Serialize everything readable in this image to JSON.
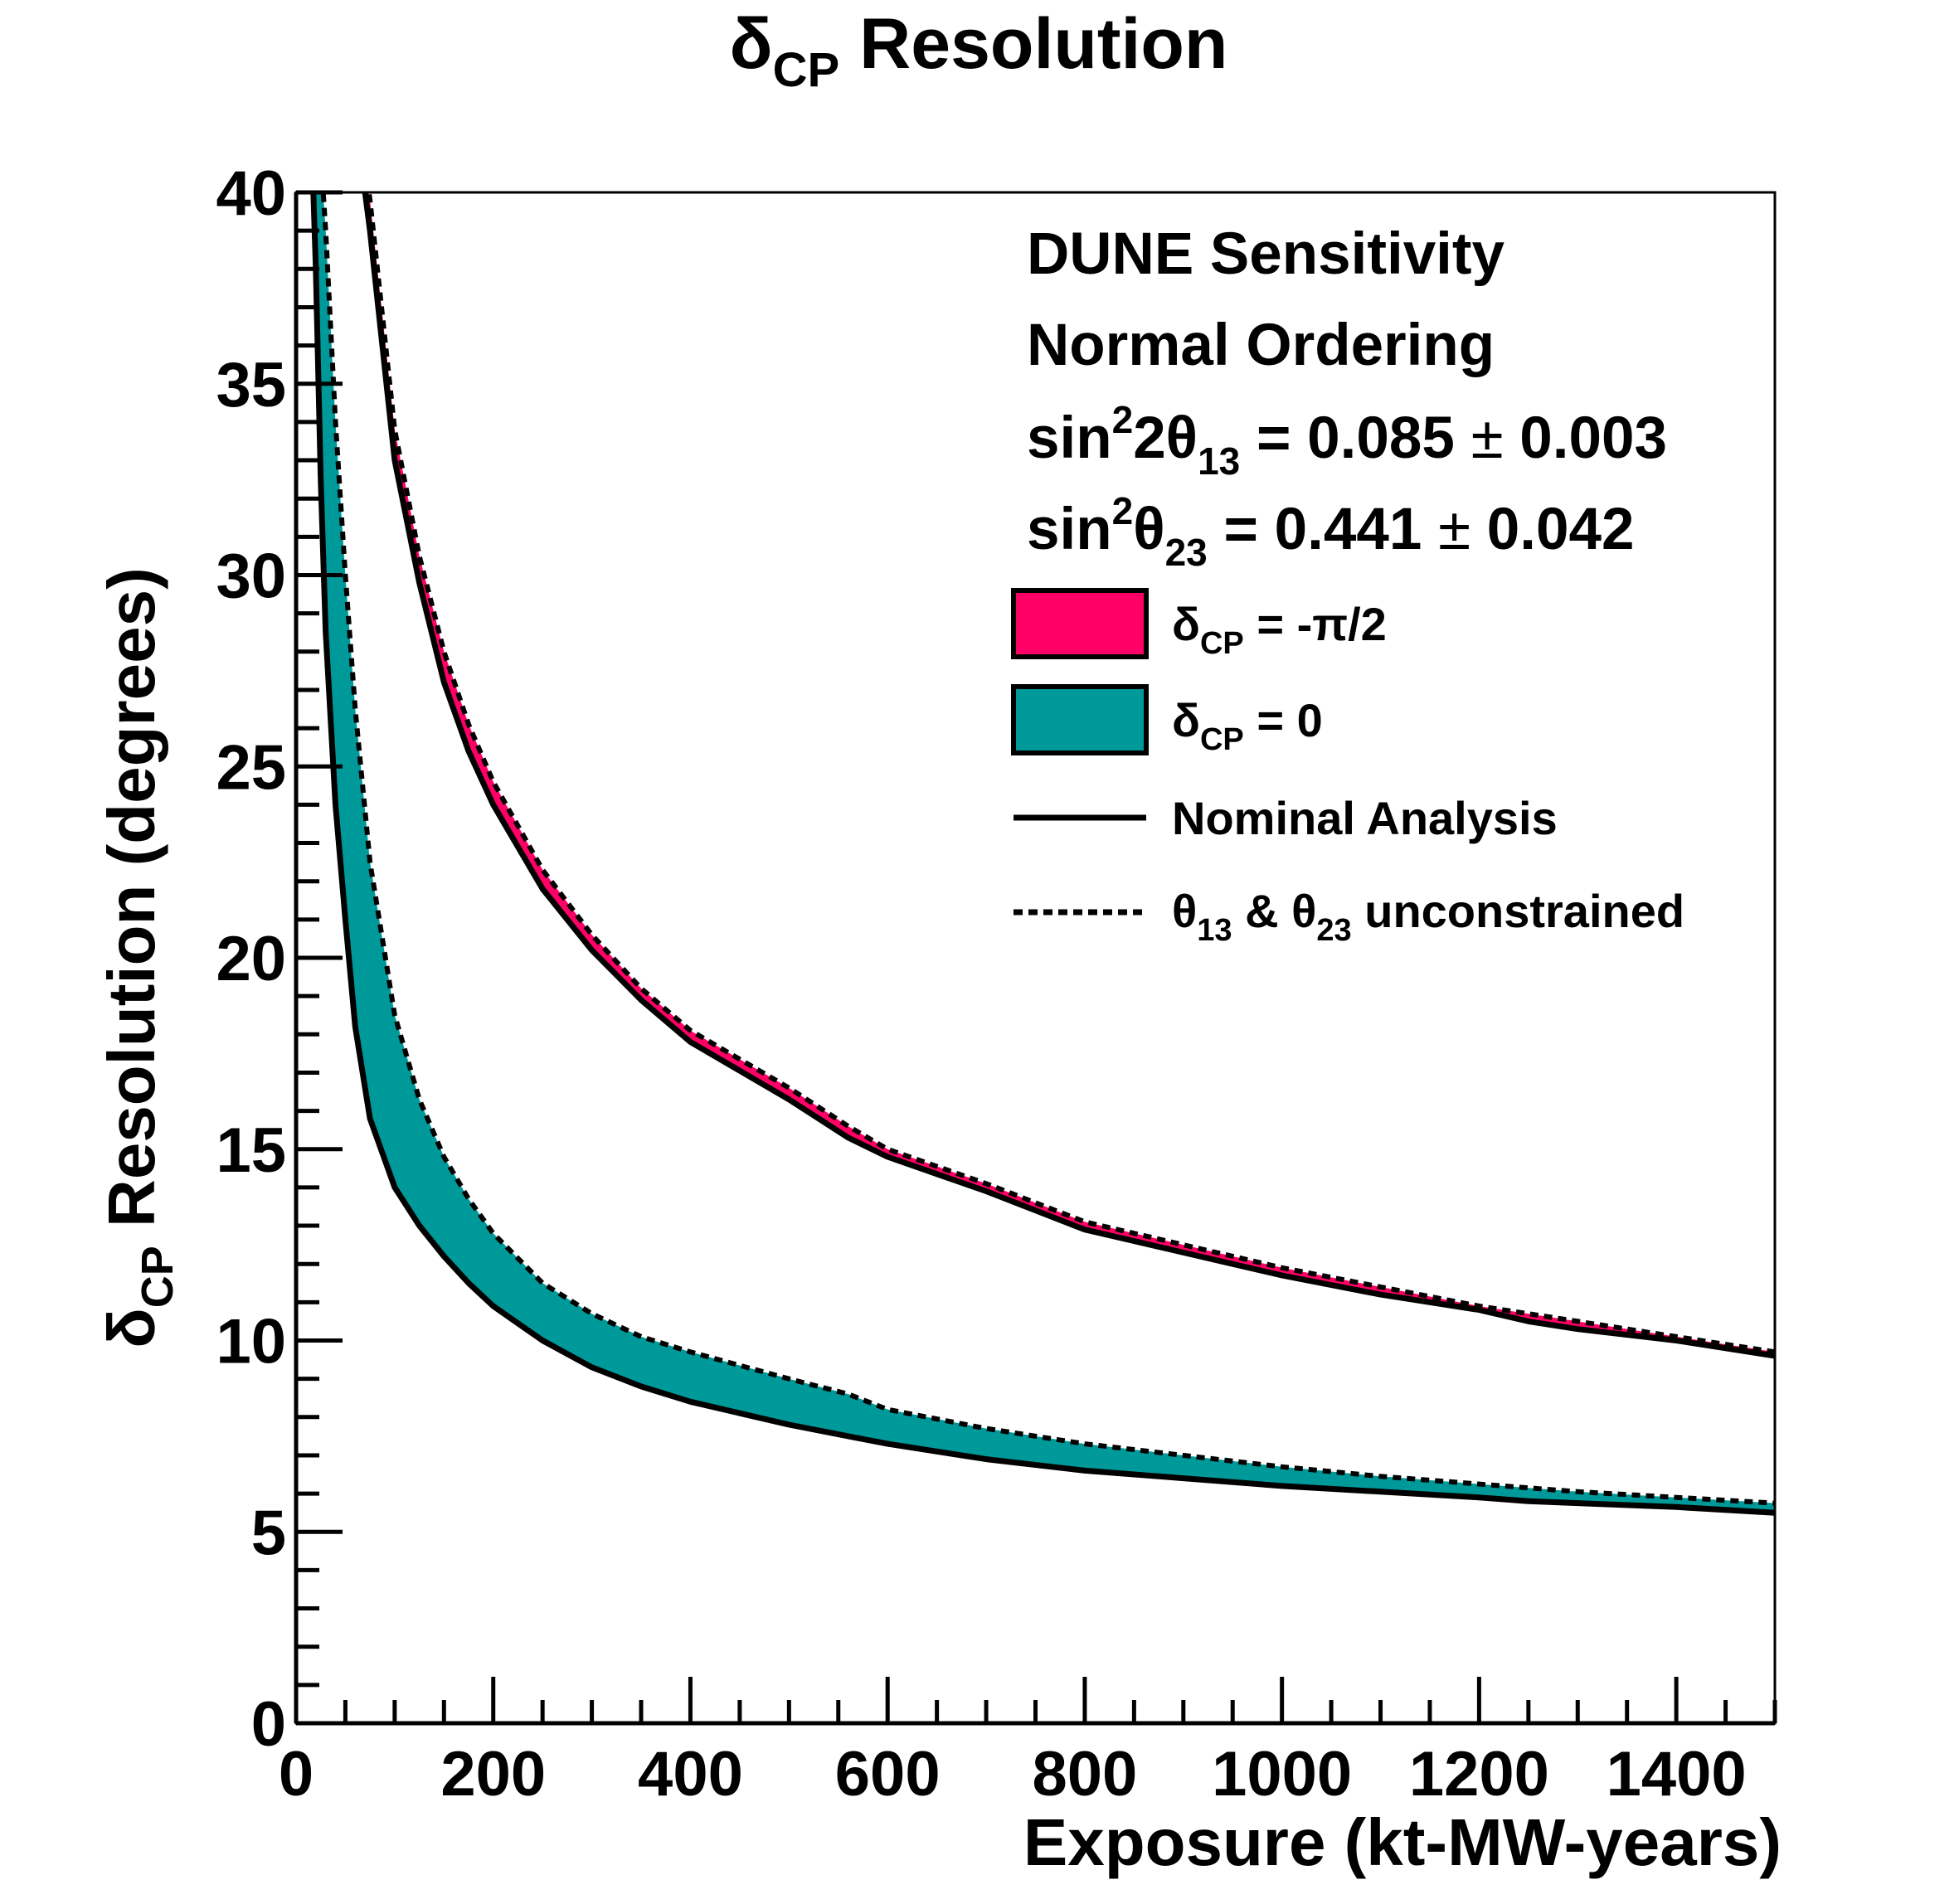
{
  "chart_data": {
    "type": "line",
    "title": {
      "main": "δ",
      "sub": "CP",
      "rest": " Resolution"
    },
    "xlabel": "Exposure (kt-MW-years)",
    "ylabel": {
      "main": "δ",
      "sub": "CP",
      "rest": " Resolution (degrees)"
    },
    "xlim": [
      0,
      1500
    ],
    "ylim": [
      0,
      40
    ],
    "x_ticks": [
      0,
      200,
      400,
      600,
      800,
      1000,
      1200,
      1400
    ],
    "x_tick_labels": [
      "0",
      "200",
      "400",
      "600",
      "800",
      "1000",
      "1200",
      "1400"
    ],
    "y_ticks": [
      0,
      5,
      10,
      15,
      20,
      25,
      30,
      35,
      40
    ],
    "y_tick_labels": [
      "0",
      "5",
      "10",
      "15",
      "20",
      "25",
      "30",
      "35",
      "40"
    ],
    "grid": false,
    "legend_position": "top-right",
    "annotations": {
      "line1": "DUNE Sensitivity",
      "line2": "Normal Ordering",
      "line3": {
        "a": "sin",
        "sup": "2",
        "b": "2θ",
        "sub": "13",
        "c": " = 0.085 ",
        "pm": "±",
        "d": " 0.003"
      },
      "line4": {
        "a": "sin",
        "sup": "2",
        "b": "θ",
        "sub": "23",
        "c": " = 0.441 ",
        "pm": "±",
        "d": " 0.042"
      }
    },
    "legend": [
      {
        "kind": "fill",
        "color": "#ff0066",
        "main": "δ",
        "sub": "CP",
        "rest": " = -π/2"
      },
      {
        "kind": "fill",
        "color": "#009999",
        "main": "δ",
        "sub": "CP",
        "rest": " = 0"
      },
      {
        "kind": "solid",
        "text": "Nominal Analysis"
      },
      {
        "kind": "dashed",
        "t1": "θ",
        "s1": "13",
        "mid": " & ",
        "t2": "θ",
        "s2": "23",
        "rest": " unconstrained"
      }
    ],
    "series": [
      {
        "name": "δCP = -π/2",
        "color": "#ff0066",
        "x": [
          60,
          75,
          100,
          125,
          150,
          175,
          200,
          250,
          300,
          350,
          400,
          500,
          560,
          600,
          700,
          800,
          900,
          1000,
          1100,
          1200,
          1250,
          1300,
          1400,
          1500
        ],
        "nominal": [
          42.0,
          39.0,
          33.0,
          29.8,
          27.2,
          25.4,
          24.0,
          21.8,
          20.2,
          18.9,
          17.8,
          16.3,
          15.3,
          14.8,
          13.9,
          12.9,
          12.3,
          11.7,
          11.2,
          10.8,
          10.5,
          10.3,
          10.0,
          9.6
        ],
        "unconstrained": [
          42.5,
          39.8,
          33.8,
          30.5,
          28.0,
          26.1,
          24.6,
          22.3,
          20.6,
          19.2,
          18.1,
          16.6,
          15.6,
          15.0,
          14.1,
          13.1,
          12.5,
          11.9,
          11.4,
          10.9,
          10.7,
          10.5,
          10.1,
          9.7
        ]
      },
      {
        "name": "δCP = 0",
        "color": "#009999",
        "x": [
          15,
          20,
          25,
          30,
          40,
          50,
          60,
          75,
          100,
          125,
          150,
          175,
          200,
          250,
          300,
          350,
          400,
          500,
          560,
          600,
          700,
          800,
          900,
          1000,
          1100,
          1200,
          1250,
          1300,
          1400,
          1500
        ],
        "nominal": [
          42.0,
          38.0,
          32.5,
          28.5,
          24.0,
          21.0,
          18.2,
          15.8,
          14.0,
          13.0,
          12.2,
          11.5,
          10.9,
          10.0,
          9.3,
          8.8,
          8.4,
          7.8,
          7.5,
          7.3,
          6.9,
          6.6,
          6.4,
          6.2,
          6.05,
          5.9,
          5.8,
          5.75,
          5.65,
          5.5
        ],
        "unconstrained": [
          44.0,
          43.0,
          41.0,
          39.0,
          34.0,
          30.0,
          26.5,
          22.5,
          18.5,
          16.3,
          14.8,
          13.7,
          12.8,
          11.5,
          10.7,
          10.1,
          9.7,
          9.0,
          8.6,
          8.2,
          7.7,
          7.3,
          7.0,
          6.7,
          6.45,
          6.25,
          6.15,
          6.05,
          5.9,
          5.75
        ]
      }
    ]
  }
}
